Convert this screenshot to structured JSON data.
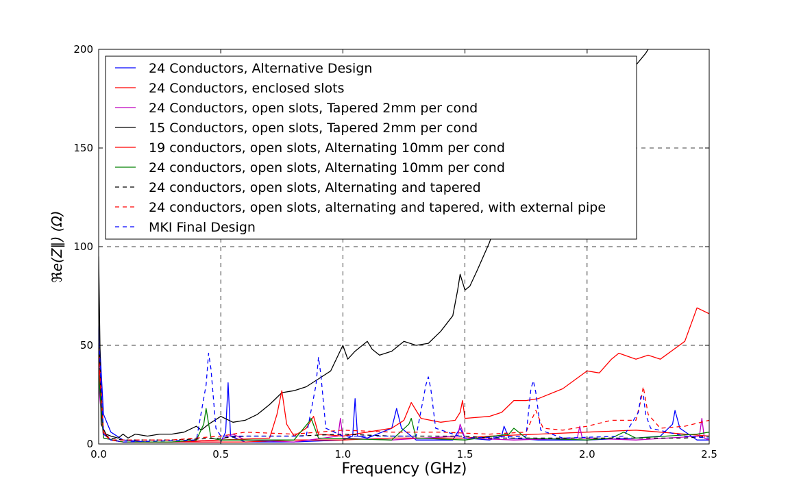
{
  "chart_data": {
    "type": "line",
    "xlabel": "Frequency (GHz)",
    "ylabel": "ℜe(Z∥) (Ω)",
    "xlim": [
      0.0,
      2.5
    ],
    "ylim": [
      0,
      200
    ],
    "xticks": [
      "0.0",
      "0.5",
      "1.0",
      "1.5",
      "2.0",
      "2.5"
    ],
    "yticks": [
      "0",
      "50",
      "100",
      "150",
      "200"
    ],
    "grid": true,
    "legend_position": "top-left",
    "series": [
      {
        "name": "24 Conductors, Alternative Design",
        "color": "#0000ff",
        "dash": "solid",
        "x": [
          0.0,
          0.02,
          0.05,
          0.1,
          0.2,
          0.3,
          0.4,
          0.5,
          0.52,
          0.53,
          0.54,
          0.6,
          0.8,
          1.0,
          1.04,
          1.05,
          1.06,
          1.1,
          1.2,
          1.22,
          1.24,
          1.3,
          1.45,
          1.48,
          1.5,
          1.6,
          1.65,
          1.66,
          1.68,
          1.8,
          2.0,
          2.2,
          2.3,
          2.35,
          2.36,
          2.38,
          2.45,
          2.5
        ],
        "y": [
          60,
          15,
          6,
          2,
          1,
          1,
          1,
          1,
          6,
          31,
          4,
          1,
          1,
          2,
          4,
          23,
          4,
          3,
          8,
          18,
          8,
          2,
          2,
          8,
          3,
          2,
          4,
          9,
          3,
          2,
          2,
          3,
          4,
          10,
          17,
          8,
          2,
          2
        ]
      },
      {
        "name": "24 Conductors, enclosed slots",
        "color": "#ff0000",
        "dash": "solid",
        "x": [
          0.0,
          0.02,
          0.05,
          0.1,
          0.3,
          0.5,
          0.6,
          0.8,
          1.0,
          1.2,
          1.4,
          1.5,
          1.6,
          1.8,
          2.0,
          2.2,
          2.3,
          2.4,
          2.5
        ],
        "y": [
          40,
          5,
          2,
          1,
          1,
          1,
          1,
          2,
          2,
          3,
          3,
          3,
          4,
          5,
          6,
          7,
          6,
          5,
          4
        ]
      },
      {
        "name": "24 Conductors, open slots, Tapered 2mm per cond",
        "color": "#bf00bf",
        "dash": "solid",
        "x": [
          0.0,
          0.02,
          0.1,
          0.3,
          0.5,
          0.55,
          0.6,
          0.8,
          0.98,
          0.99,
          1.0,
          1.2,
          1.47,
          1.48,
          1.5,
          1.7,
          1.96,
          1.97,
          1.98,
          2.2,
          2.46,
          2.47,
          2.48,
          2.5
        ],
        "y": [
          30,
          3,
          1,
          1,
          2,
          5,
          2,
          1,
          4,
          13,
          3,
          2,
          4,
          10,
          3,
          2,
          3,
          9,
          3,
          2,
          4,
          13,
          3,
          2
        ]
      },
      {
        "name": "15 Conductors, open slots, Tapered 2mm per cond",
        "color": "#000000",
        "dash": "solid",
        "x": [
          0.0,
          0.01,
          0.03,
          0.05,
          0.08,
          0.1,
          0.12,
          0.15,
          0.2,
          0.25,
          0.3,
          0.35,
          0.4,
          0.42,
          0.45,
          0.5,
          0.55,
          0.6,
          0.65,
          0.7,
          0.75,
          0.8,
          0.85,
          0.9,
          0.95,
          1.0,
          1.02,
          1.05,
          1.1,
          1.12,
          1.15,
          1.2,
          1.25,
          1.3,
          1.35,
          1.4,
          1.45,
          1.47,
          1.48,
          1.49,
          1.5,
          1.52,
          1.55,
          1.6,
          1.65,
          1.7,
          1.8,
          1.9,
          2.0,
          2.1,
          2.15,
          2.18,
          2.2,
          2.22,
          2.24,
          2.25
        ],
        "y": [
          95,
          10,
          5,
          4,
          3,
          5,
          3,
          5,
          4,
          5,
          5,
          6,
          9,
          7,
          10,
          14,
          11,
          12,
          15,
          20,
          26,
          27,
          29,
          33,
          37,
          50,
          43,
          47,
          52,
          48,
          45,
          47,
          52,
          50,
          51,
          57,
          65,
          78,
          86,
          82,
          78,
          80,
          88,
          102,
          120,
          135,
          155,
          165,
          170,
          175,
          180,
          185,
          192,
          195,
          198,
          200
        ]
      },
      {
        "name": "19 conductors, open slots, Alternating 10mm per cond",
        "color": "#ff0000",
        "dash": "solid",
        "x": [
          0.0,
          0.02,
          0.05,
          0.1,
          0.3,
          0.5,
          0.7,
          0.73,
          0.75,
          0.77,
          0.8,
          0.85,
          0.88,
          0.9,
          1.0,
          1.1,
          1.2,
          1.25,
          1.28,
          1.32,
          1.4,
          1.46,
          1.48,
          1.49,
          1.5,
          1.6,
          1.65,
          1.7,
          1.75,
          1.8,
          1.9,
          2.0,
          2.05,
          2.1,
          2.13,
          2.2,
          2.25,
          2.3,
          2.4,
          2.45,
          2.5
        ],
        "y": [
          50,
          6,
          2,
          1,
          1,
          2,
          3,
          15,
          27,
          10,
          4,
          8,
          14,
          5,
          4,
          6,
          8,
          12,
          21,
          13,
          11,
          12,
          16,
          22,
          13,
          14,
          16,
          22,
          22,
          23,
          28,
          37,
          36,
          43,
          46,
          43,
          45,
          43,
          52,
          69,
          66
        ]
      },
      {
        "name": "24 conductors, open slots, Alternating 10mm per cond",
        "color": "#008000",
        "dash": "solid",
        "x": [
          0.0,
          0.02,
          0.1,
          0.3,
          0.4,
          0.43,
          0.44,
          0.46,
          0.5,
          0.8,
          0.86,
          0.87,
          0.9,
          1.2,
          1.27,
          1.28,
          1.3,
          1.5,
          1.68,
          1.7,
          1.75,
          2.0,
          2.1,
          2.15,
          2.2,
          2.45,
          2.5
        ],
        "y": [
          35,
          3,
          1,
          1,
          2,
          10,
          18,
          3,
          2,
          2,
          11,
          13,
          3,
          2,
          10,
          13,
          3,
          2,
          5,
          8,
          3,
          2,
          3,
          6,
          3,
          5,
          6
        ]
      },
      {
        "name": "24 conductors, open slots, Alternating and tapered",
        "color": "#000000",
        "dash": "dashed",
        "x": [
          0.0,
          0.02,
          0.05,
          0.1,
          0.3,
          0.5,
          0.6,
          0.8,
          1.0,
          1.2,
          1.4,
          1.5,
          1.6,
          1.8,
          2.0,
          2.2,
          2.4,
          2.5
        ],
        "y": [
          50,
          5,
          3,
          2,
          2,
          3,
          4,
          4,
          5,
          4,
          4,
          4,
          3,
          3,
          3,
          3,
          3,
          4
        ]
      },
      {
        "name": "24 conductors, open slots, alternating and tapered, with external pipe",
        "color": "#ff0000",
        "dash": "dashed",
        "x": [
          0.0,
          0.02,
          0.05,
          0.1,
          0.3,
          0.5,
          0.6,
          0.8,
          1.0,
          1.2,
          1.4,
          1.6,
          1.75,
          1.79,
          1.82,
          1.9,
          2.0,
          2.1,
          2.2,
          2.22,
          2.23,
          2.25,
          2.3,
          2.4,
          2.5
        ],
        "y": [
          45,
          5,
          2,
          2,
          2,
          4,
          6,
          5,
          7,
          6,
          6,
          5,
          6,
          17,
          8,
          7,
          9,
          12,
          12,
          22,
          29,
          15,
          8,
          9,
          12
        ]
      },
      {
        "name": "MKI Final Design",
        "color": "#0000ff",
        "dash": "dashed",
        "x": [
          0.0,
          0.02,
          0.05,
          0.1,
          0.4,
          0.44,
          0.45,
          0.46,
          0.48,
          0.5,
          0.85,
          0.89,
          0.9,
          0.91,
          0.93,
          1.0,
          1.3,
          1.34,
          1.35,
          1.36,
          1.38,
          1.5,
          1.75,
          1.77,
          1.78,
          1.79,
          1.81,
          1.9,
          2.15,
          2.21,
          2.22,
          2.23,
          2.24,
          2.26,
          2.4,
          2.5
        ],
        "y": [
          55,
          5,
          2,
          1,
          2,
          30,
          46,
          38,
          8,
          4,
          4,
          30,
          44,
          35,
          8,
          4,
          4,
          30,
          34,
          28,
          8,
          3,
          4,
          28,
          32,
          26,
          7,
          3,
          4,
          16,
          24,
          25,
          15,
          8,
          4,
          3
        ]
      }
    ]
  }
}
